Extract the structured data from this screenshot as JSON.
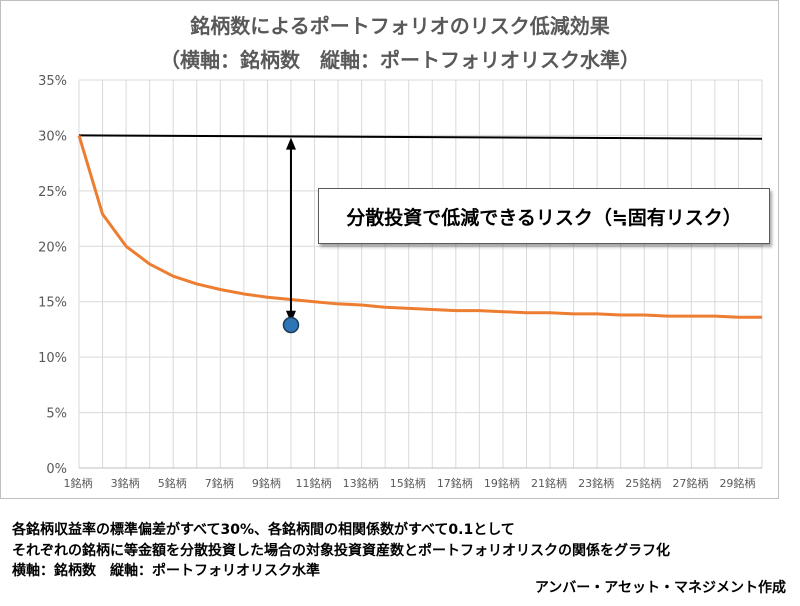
{
  "chart_data": {
    "type": "line",
    "title": "銘柄数によるポートフォリオのリスク低減効果",
    "subtitle": "（横軸：銘柄数　縦軸：ポートフォリオリスク水準）",
    "xlabel": "",
    "ylabel": "",
    "ylim": [
      0,
      0.35
    ],
    "xlim": [
      1,
      30
    ],
    "yticks": [
      "0%",
      "5%",
      "10%",
      "15%",
      "20%",
      "25%",
      "30%",
      "35%"
    ],
    "xtick_labels": [
      "1銘柄",
      "3銘柄",
      "5銘柄",
      "7銘柄",
      "9銘柄",
      "11銘柄",
      "13銘柄",
      "15銘柄",
      "17銘柄",
      "19銘柄",
      "21銘柄",
      "23銘柄",
      "25銘柄",
      "27銘柄",
      "29銘柄"
    ],
    "grid": true,
    "series": [
      {
        "color": "#ed7d31",
        "x": [
          1,
          2,
          3,
          4,
          5,
          6,
          7,
          8,
          9,
          10,
          11,
          12,
          13,
          14,
          15,
          16,
          17,
          18,
          19,
          20,
          21,
          22,
          23,
          24,
          25,
          26,
          27,
          28,
          29,
          30
        ],
        "y": [
          0.3,
          0.229,
          0.2,
          0.184,
          0.173,
          0.166,
          0.161,
          0.157,
          0.154,
          0.152,
          0.15,
          0.148,
          0.147,
          0.145,
          0.144,
          0.143,
          0.142,
          0.142,
          0.141,
          0.14,
          0.14,
          0.139,
          0.139,
          0.138,
          0.138,
          0.137,
          0.137,
          0.137,
          0.136,
          0.136
        ]
      },
      {
        "color": "#000000",
        "x": [
          1,
          30
        ],
        "y": [
          0.3,
          0.297
        ]
      }
    ],
    "marker": {
      "x": 10,
      "y": 0.129,
      "color": "#2e75b6"
    },
    "arrow": {
      "x": 10,
      "y_top": 0.298,
      "y_bottom": 0.131
    },
    "annotation": "分散投資で低減できるリスク（≒固有リスク）"
  },
  "notes": [
    "各銘柄収益率の標準偏差がすべて30%、各銘柄間の相関係数がすべて0.1として",
    "それぞれの銘柄に等金額を分散投資した場合の対象投資資産数とポートフォリオリスクの関係をグラフ化",
    "横軸：銘柄数　縦軸：ポートフォリオリスク水準"
  ],
  "credit": "アンバー・アセット・マネジメント作成"
}
